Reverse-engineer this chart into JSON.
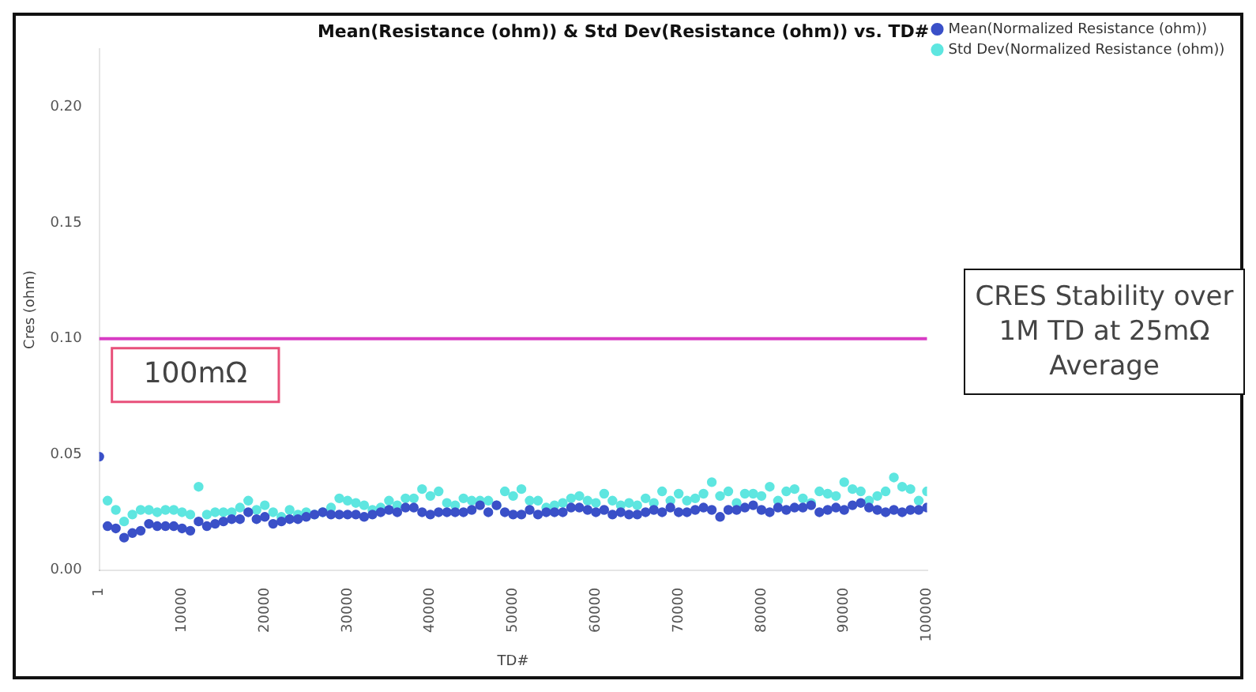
{
  "chart_data": {
    "type": "scatter",
    "title": "Mean(Resistance (ohm)) & Std Dev(Resistance (ohm)) vs. TD#",
    "xlabel": "TD#",
    "ylabel": "Cres (ohm)",
    "x": [
      1,
      1000,
      2000,
      3000,
      4000,
      5000,
      6000,
      7000,
      8000,
      9000,
      10000,
      11000,
      12000,
      13000,
      14000,
      15000,
      16000,
      17000,
      18000,
      19000,
      20000,
      21000,
      22000,
      23000,
      24000,
      25000,
      26000,
      27000,
      28000,
      29000,
      30000,
      31000,
      32000,
      33000,
      34000,
      35000,
      36000,
      37000,
      38000,
      39000,
      40000,
      41000,
      42000,
      43000,
      44000,
      45000,
      46000,
      47000,
      48000,
      49000,
      50000,
      51000,
      52000,
      53000,
      54000,
      55000,
      56000,
      57000,
      58000,
      59000,
      60000,
      61000,
      62000,
      63000,
      64000,
      65000,
      66000,
      67000,
      68000,
      69000,
      70000,
      71000,
      72000,
      73000,
      74000,
      75000,
      76000,
      77000,
      78000,
      79000,
      80000,
      81000,
      82000,
      83000,
      84000,
      85000,
      86000,
      87000,
      88000,
      89000,
      90000,
      91000,
      92000,
      93000,
      94000,
      95000,
      96000,
      97000,
      98000,
      99000,
      100000
    ],
    "series": [
      {
        "name": "Mean(Normalized Resistance (ohm))",
        "color": "#3a50c8",
        "values": [
          0.049,
          0.019,
          0.018,
          0.014,
          0.016,
          0.017,
          0.02,
          0.019,
          0.019,
          0.019,
          0.018,
          0.017,
          0.021,
          0.019,
          0.02,
          0.021,
          0.022,
          0.022,
          0.025,
          0.022,
          0.023,
          0.02,
          0.021,
          0.022,
          0.022,
          0.023,
          0.024,
          0.025,
          0.024,
          0.024,
          0.024,
          0.024,
          0.023,
          0.024,
          0.025,
          0.026,
          0.025,
          0.027,
          0.027,
          0.025,
          0.024,
          0.025,
          0.025,
          0.025,
          0.025,
          0.026,
          0.028,
          0.025,
          0.028,
          0.025,
          0.024,
          0.024,
          0.026,
          0.024,
          0.025,
          0.025,
          0.025,
          0.027,
          0.027,
          0.026,
          0.025,
          0.026,
          0.024,
          0.025,
          0.024,
          0.024,
          0.025,
          0.026,
          0.025,
          0.027,
          0.025,
          0.025,
          0.026,
          0.027,
          0.026,
          0.023,
          0.026,
          0.026,
          0.027,
          0.028,
          0.026,
          0.025,
          0.027,
          0.026,
          0.027,
          0.027,
          0.028,
          0.025,
          0.026,
          0.027,
          0.026,
          0.028,
          0.029,
          0.027,
          0.026,
          0.025,
          0.026,
          0.025,
          0.026,
          0.026,
          0.027
        ]
      },
      {
        "name": "Std Dev(Normalized Resistance (ohm))",
        "color": "#5ee6e0",
        "values": [
          null,
          0.03,
          0.026,
          0.021,
          0.024,
          0.026,
          0.026,
          0.025,
          0.026,
          0.026,
          0.025,
          0.024,
          0.036,
          0.024,
          0.025,
          0.025,
          0.025,
          0.027,
          0.03,
          0.026,
          0.028,
          0.025,
          0.023,
          0.026,
          0.024,
          0.025,
          0.024,
          0.025,
          0.027,
          0.031,
          0.03,
          0.029,
          0.028,
          0.026,
          0.027,
          0.03,
          0.028,
          0.031,
          0.031,
          0.035,
          0.032,
          0.034,
          0.029,
          0.028,
          0.031,
          0.03,
          0.03,
          0.03,
          0.028,
          0.034,
          0.032,
          0.035,
          0.03,
          0.03,
          0.027,
          0.028,
          0.029,
          0.031,
          0.032,
          0.03,
          0.029,
          0.033,
          0.03,
          0.028,
          0.029,
          0.028,
          0.031,
          0.029,
          0.034,
          0.03,
          0.033,
          0.03,
          0.031,
          0.033,
          0.038,
          0.032,
          0.034,
          0.029,
          0.033,
          0.033,
          0.032,
          0.036,
          0.03,
          0.034,
          0.035,
          0.031,
          0.029,
          0.034,
          0.033,
          0.032,
          0.038,
          0.035,
          0.034,
          0.03,
          0.032,
          0.034,
          0.04,
          0.036,
          0.035,
          0.03,
          0.034
        ]
      }
    ],
    "xlim": [
      1,
      100000
    ],
    "xticks": [
      1,
      10000,
      20000,
      30000,
      40000,
      50000,
      60000,
      70000,
      80000,
      90000,
      100000
    ],
    "ylim": [
      0,
      0.225
    ],
    "yticks": [
      {
        "value": 0,
        "label": "0.00"
      },
      {
        "value": 0.05,
        "label": "0.05"
      },
      {
        "value": 0.1,
        "label": "0.10"
      },
      {
        "value": 0.15,
        "label": "0.15"
      },
      {
        "value": 0.2,
        "label": "0.20"
      }
    ],
    "ref_lines": [
      {
        "axis": "y",
        "value": 0.1,
        "label": "100mΩ",
        "color": "#d83cc4"
      }
    ],
    "annotations": [
      "CRES Stability over 1M TD at 25mΩ Average"
    ],
    "marker": "circle",
    "legend": "top right",
    "grid": false
  }
}
